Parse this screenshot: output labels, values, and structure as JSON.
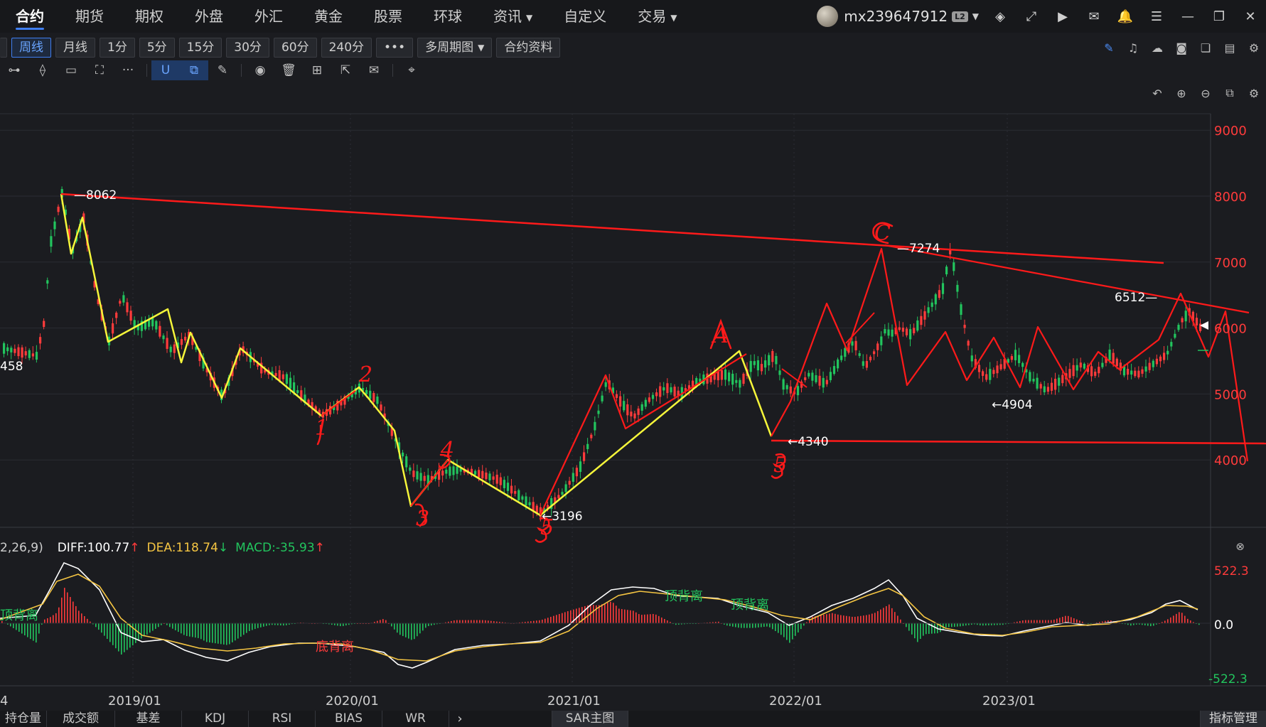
{
  "nav": {
    "items": [
      "合约",
      "期货",
      "期权",
      "外盘",
      "外汇",
      "黄金",
      "股票",
      "环球",
      "资讯",
      "自定义",
      "交易"
    ],
    "active_index": 0,
    "dropdown_items": [
      "资讯",
      "交易"
    ],
    "username": "mx239647912",
    "user_badge": "L2"
  },
  "toolbar": {
    "periods": [
      "周线",
      "月线",
      "1分",
      "5分",
      "15分",
      "30分",
      "60分",
      "240分",
      "•••",
      "多周期图",
      "合约资料"
    ],
    "active_period": "周线",
    "multi_period_dropdown": true
  },
  "colors": {
    "up": "#ff3b3b",
    "down": "#22c55e",
    "annotation_red": "#ff1a1a",
    "annotation_yellow": "#f5f53a",
    "axis_red": "#ff3b3b",
    "accent": "#3f7ef0"
  },
  "main_chart": {
    "y_ticks": [
      "9000",
      "8000",
      "7000",
      "6000",
      "5000",
      "4000"
    ],
    "x_ticks": [
      "2019/01",
      "2020/01",
      "2021/01",
      "2022/01",
      "2023/01"
    ],
    "left_cut_x_label": "4",
    "left_cut_price_label": "458",
    "price_labels": [
      {
        "text": "8062",
        "kind": "high"
      },
      {
        "text": "7274",
        "kind": "high"
      },
      {
        "text": "6512",
        "kind": "high"
      },
      {
        "text": "4904",
        "kind": "low"
      },
      {
        "text": "4340",
        "kind": "low"
      },
      {
        "text": "3196",
        "kind": "low"
      }
    ],
    "wave_labels": [
      "1",
      "2",
      "3",
      "4",
      "5",
      "A",
      "C",
      "5"
    ]
  },
  "macd": {
    "label_prefix": "2,26,9)",
    "diff_label": "DIFF:100.77",
    "dea_label": "DEA:118.74",
    "macd_label": "MACD:-35.93",
    "diff_arrow": "↑",
    "dea_arrow": "↓",
    "macd_arrow": "↑",
    "axis_ticks": [
      "522.3",
      "0.0",
      "-522.3"
    ],
    "divergence_labels": [
      "顶背离",
      "底背离",
      "顶背离",
      "顶背离"
    ]
  },
  "bottom_tabs": {
    "items": [
      "持仓量",
      "成交额",
      "基差",
      "KDJ",
      "RSI",
      "BIAS",
      "WR"
    ],
    "sar_tab": "SAR主图",
    "indicator_management": "指标管理",
    "next_arrow": "›"
  }
}
